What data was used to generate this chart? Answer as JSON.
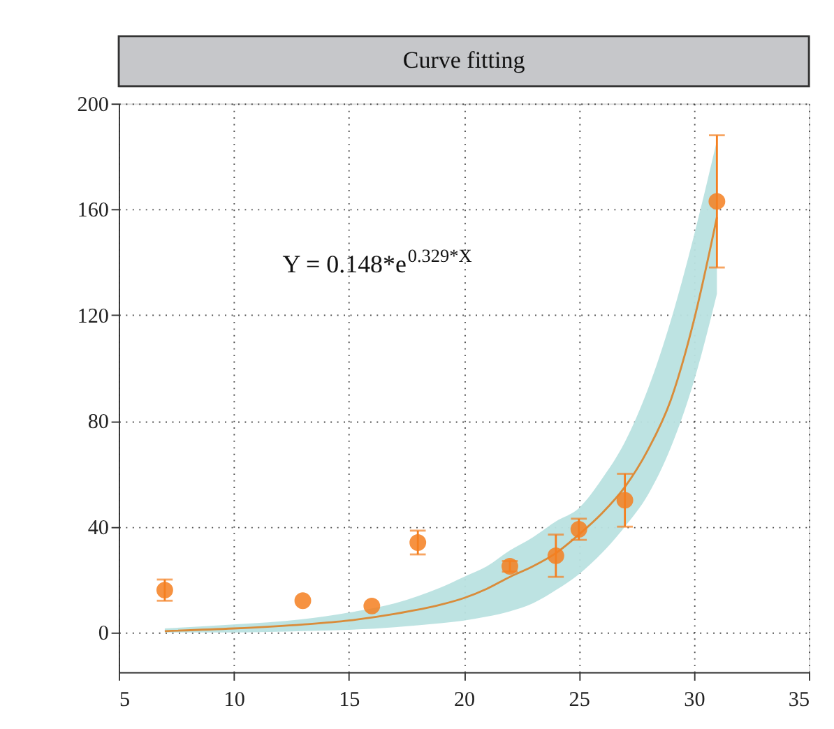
{
  "chart_data": {
    "type": "scatter",
    "title": "Curve fitting",
    "xlim": [
      5,
      35
    ],
    "xticks": [
      5,
      10,
      15,
      20,
      25,
      30,
      35
    ],
    "ylim": [
      -15,
      200
    ],
    "yticks": [
      0,
      40,
      80,
      120,
      160,
      200
    ],
    "grid": true,
    "marker": "circle",
    "annotations": [
      "Y = 0.148*e$^{0.329*X}$"
    ],
    "series": [
      {
        "type": "line",
        "color": "#d98c3a",
        "line_style": "solid",
        "marker": "none",
        "x": [
          7,
          10,
          13,
          15,
          17,
          19,
          20,
          21,
          22,
          23,
          24,
          25,
          26,
          27,
          28,
          29,
          30,
          31
        ],
        "values": [
          0.5,
          1.5,
          3,
          4.5,
          7,
          10.5,
          13,
          16.5,
          21,
          25,
          30,
          37,
          45,
          55,
          69,
          88,
          118,
          157
        ],
        "lower": [
          0,
          0,
          0.5,
          1,
          2,
          3.5,
          4.5,
          6,
          8,
          11,
          16,
          22,
          30,
          40,
          52,
          70,
          95,
          128
        ],
        "upper": [
          1.5,
          3,
          5,
          7.5,
          11,
          17,
          21,
          25,
          31,
          36,
          42,
          47,
          58,
          72,
          92,
          118,
          150,
          186
        ]
      },
      {
        "color": "#f47f20",
        "x": [
          7,
          13,
          16,
          18,
          22,
          24,
          25,
          27,
          31
        ],
        "values": [
          16,
          12,
          10,
          34,
          25,
          29,
          39,
          50,
          163
        ],
        "errors": [
          4,
          null,
          null,
          4.5,
          2,
          8,
          4,
          10,
          [
            138,
            188
          ]
        ]
      }
    ]
  }
}
